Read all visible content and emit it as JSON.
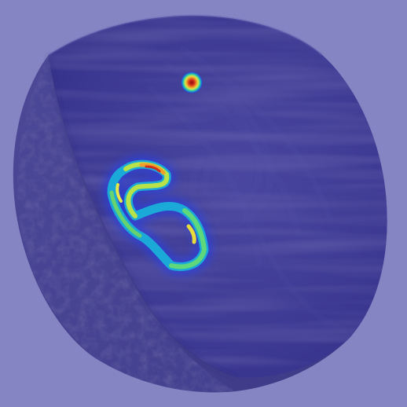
{
  "background_color": "#8585c3",
  "object": {
    "description_name": "wooden-disc-volume",
    "side_color": "#46428a",
    "face_color": "#3f3c95",
    "rim_color": "#55529a"
  },
  "heatmap": {
    "colormap": [
      "#1e2ad8",
      "#00b7e0",
      "#3ed48a",
      "#e8e845",
      "#f09a2a",
      "#c8221e"
    ],
    "hotspots": [
      {
        "name": "hotspot-dot",
        "peak": 1.0
      },
      {
        "name": "hotspot-ring",
        "peak": 0.75
      }
    ]
  }
}
